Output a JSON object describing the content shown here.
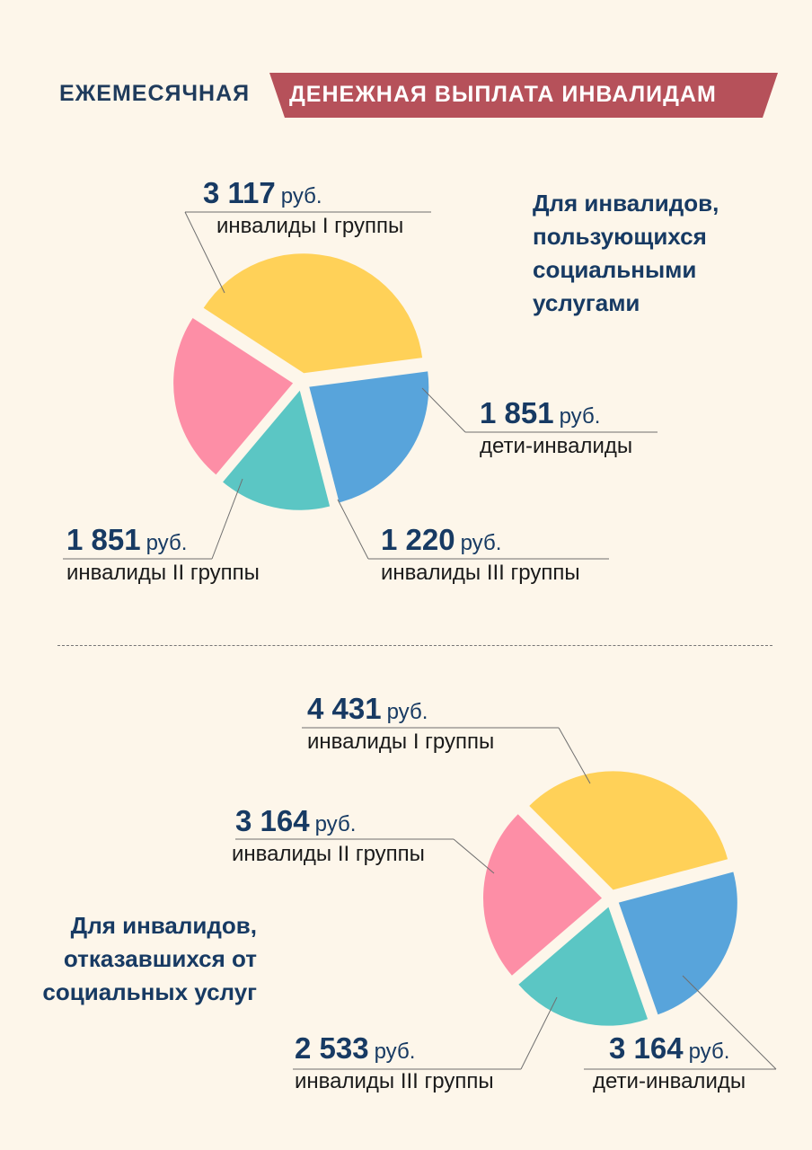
{
  "title": {
    "left": "ЕЖЕМЕСЯЧНАЯ",
    "right": "ДЕНЕЖНАЯ ВЫПЛАТА ИНВАЛИДАМ"
  },
  "colors": {
    "yellow": "#ffd158",
    "blue": "#58a4db",
    "teal": "#5bc6c4",
    "pink": "#fd8ea6",
    "band": "#b6515a"
  },
  "chart_data": [
    {
      "type": "pie",
      "title": "Для инвалидов, пользующихся социальными услугами",
      "unit": "руб.",
      "slices": [
        {
          "amount": "3 117",
          "desc": "инвалиды I группы",
          "value": 3117,
          "color": "#ffd158"
        },
        {
          "amount": "1 851",
          "desc": "дети-инвалиды",
          "value": 1851,
          "color": "#58a4db"
        },
        {
          "amount": "1 220",
          "desc": "инвалиды III группы",
          "value": 1220,
          "color": "#5bc6c4"
        },
        {
          "amount": "1 851",
          "desc": "инвалиды II группы",
          "value": 1851,
          "color": "#fd8ea6"
        }
      ]
    },
    {
      "type": "pie",
      "title": "Для инвалидов, отказавшихся от социальных услуг",
      "unit": "руб.",
      "slices": [
        {
          "amount": "4 431",
          "desc": "инвалиды I группы",
          "value": 4431,
          "color": "#ffd158"
        },
        {
          "amount": "3 164",
          "desc": "дети-инвалиды",
          "value": 3164,
          "color": "#58a4db"
        },
        {
          "amount": "2 533",
          "desc": "инвалиды III группы",
          "value": 2533,
          "color": "#5bc6c4"
        },
        {
          "amount": "3 164",
          "desc": "инвалиды II группы",
          "value": 3164,
          "color": "#fd8ea6"
        }
      ]
    }
  ]
}
